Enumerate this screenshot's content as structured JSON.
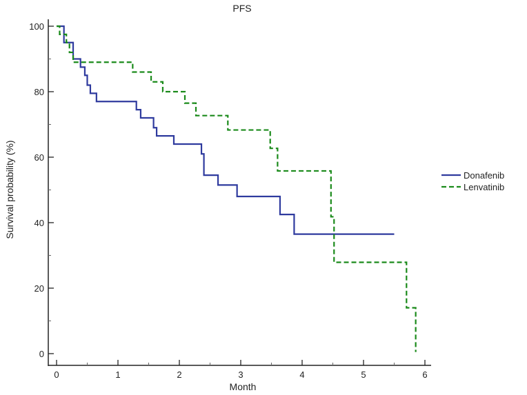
{
  "chart_data": {
    "type": "line",
    "subtype": "kaplan-meier-step",
    "title": "PFS",
    "xlabel": "Month",
    "ylabel": "Survival probability (%)",
    "xlim": [
      0,
      6
    ],
    "ylim": [
      0,
      100
    ],
    "xticks": [
      0,
      1,
      2,
      3,
      4,
      5,
      6
    ],
    "yticks": [
      0,
      20,
      40,
      60,
      80,
      100
    ],
    "grid": false,
    "legend_position": "right",
    "series": [
      {
        "name": "Donafenib",
        "color": "#2e3a9e",
        "style": "solid",
        "x": [
          0,
          0.12,
          0.27,
          0.39,
          0.46,
          0.5,
          0.55,
          0.65,
          1.3,
          1.37,
          1.58,
          1.63,
          1.91,
          2.36,
          2.4,
          2.63,
          2.94,
          3.64,
          3.87,
          5.5
        ],
        "y": [
          100,
          95,
          90,
          87.5,
          85,
          82,
          79.5,
          77,
          74.5,
          72,
          69,
          66.5,
          64,
          61,
          54.5,
          51.5,
          48,
          42.5,
          36.5,
          36.5
        ]
      },
      {
        "name": "Lenvatinib",
        "color": "#1a8a1a",
        "style": "dashed",
        "x": [
          0,
          0.05,
          0.16,
          0.21,
          0.27,
          1.24,
          1.54,
          1.73,
          2.09,
          2.27,
          2.79,
          3.48,
          3.6,
          4.47,
          4.52,
          5.7,
          5.85
        ],
        "y": [
          100,
          97.5,
          95,
          92,
          89,
          86,
          83,
          80,
          76.5,
          72.7,
          68.3,
          62.7,
          55.8,
          41.8,
          27.9,
          14,
          0.5
        ]
      }
    ]
  }
}
